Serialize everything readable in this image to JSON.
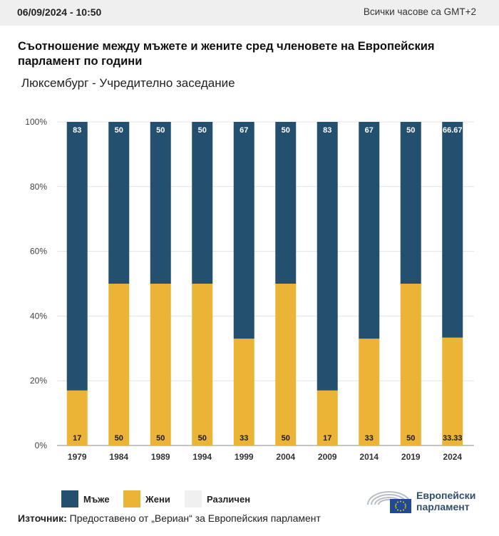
{
  "header": {
    "datetime": "06/09/2024 - 10:50",
    "timezone": "Всички часове са GMT+2"
  },
  "title": "Съотношение между мъжете и жените сред членовете на Европейския парламент по години",
  "subtitle": "Люксембург - Учредително заседание",
  "colors": {
    "men": "#24506f",
    "women": "#ebb437",
    "other": "#f0f0f0"
  },
  "legend": {
    "men": "Мъже",
    "women": "Жени",
    "other": "Различен"
  },
  "source": {
    "label": "Източник:",
    "text": " Предоставено от „Вериан“ за Европейския парламент"
  },
  "logo": {
    "line1": "Европейски",
    "line2": "парламент"
  },
  "chart_data": {
    "type": "bar",
    "stacked": true,
    "normalized": true,
    "categories": [
      "1979",
      "1984",
      "1989",
      "1994",
      "1999",
      "2004",
      "2009",
      "2014",
      "2019",
      "2024"
    ],
    "series": [
      {
        "name": "Жени",
        "values": [
          17,
          50,
          50,
          50,
          33,
          50,
          17,
          33,
          50,
          33.33
        ],
        "labels": [
          "17",
          "50",
          "50",
          "50",
          "33",
          "50",
          "17",
          "33",
          "50",
          "33.33"
        ]
      },
      {
        "name": "Мъже",
        "values": [
          83,
          50,
          50,
          50,
          67,
          50,
          83,
          67,
          50,
          66.67
        ],
        "labels": [
          "83",
          "50",
          "50",
          "50",
          "67",
          "50",
          "83",
          "67",
          "50",
          "66.67"
        ]
      }
    ],
    "ylim": [
      0,
      100
    ],
    "yticks": [
      "0%",
      "20%",
      "40%",
      "60%",
      "80%",
      "100%"
    ],
    "grid": true,
    "legend_position": "bottom-left"
  }
}
